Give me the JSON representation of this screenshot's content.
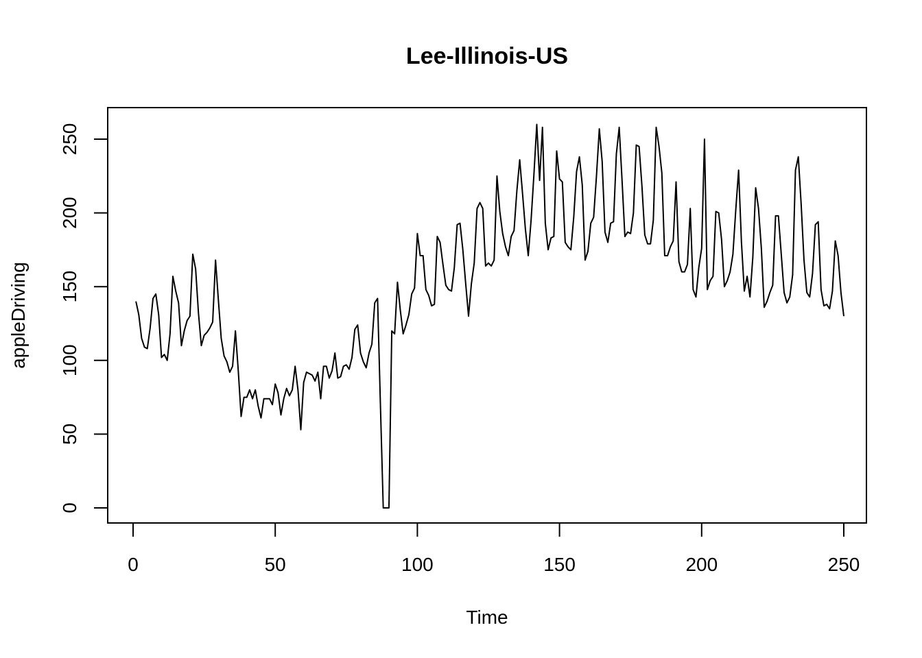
{
  "chart_data": {
    "type": "line",
    "title": "Lee-Illinois-US",
    "xlabel": "Time",
    "ylabel": "appleDriving",
    "xlim": [
      0,
      250
    ],
    "ylim": [
      0,
      250
    ],
    "x_ticks": [
      0,
      50,
      100,
      150,
      200,
      250
    ],
    "y_ticks": [
      0,
      50,
      100,
      150,
      200,
      250
    ],
    "grid": false,
    "legend": "none",
    "line_color": "#000000",
    "series": [
      {
        "x_start": 1,
        "values": [
          140,
          131,
          115,
          109,
          108,
          122,
          142,
          145,
          131,
          102,
          104,
          100,
          118,
          157,
          147,
          139,
          110,
          120,
          127,
          130,
          172,
          162,
          132,
          110,
          117,
          119,
          122,
          126,
          168,
          141,
          115,
          103,
          99,
          92,
          96,
          120,
          93,
          62,
          75,
          75,
          80,
          74,
          80,
          69,
          61,
          74,
          74,
          74,
          70,
          84,
          78,
          63,
          74,
          81,
          76,
          80,
          96,
          80,
          53,
          85,
          92,
          91,
          90,
          86,
          92,
          74,
          96,
          96,
          88,
          93,
          105,
          88,
          89,
          96,
          97,
          94,
          102,
          121,
          124,
          105,
          99,
          95,
          105,
          111,
          139,
          142,
          70,
          0,
          0,
          0,
          120,
          118,
          153,
          134,
          118,
          124,
          131,
          145,
          149,
          186,
          171,
          171,
          148,
          144,
          137,
          138,
          184,
          180,
          165,
          151,
          148,
          147,
          163,
          192,
          193,
          175,
          152,
          130,
          152,
          166,
          203,
          207,
          203,
          164,
          166,
          164,
          168,
          225,
          201,
          186,
          177,
          171,
          184,
          188,
          215,
          236,
          213,
          189,
          171,
          195,
          226,
          260,
          222,
          258,
          193,
          175,
          183,
          184,
          242,
          223,
          221,
          180,
          177,
          175,
          197,
          228,
          238,
          219,
          168,
          174,
          193,
          197,
          225,
          257,
          235,
          187,
          180,
          193,
          194,
          240,
          258,
          222,
          184,
          187,
          186,
          200,
          246,
          245,
          218,
          185,
          179,
          179,
          195,
          258,
          245,
          227,
          171,
          171,
          177,
          181,
          221,
          167,
          160,
          160,
          165,
          203,
          148,
          143,
          163,
          176,
          250,
          148,
          154,
          157,
          201,
          200,
          182,
          150,
          154,
          160,
          172,
          202,
          229,
          180,
          147,
          157,
          143,
          170,
          217,
          203,
          176,
          136,
          140,
          146,
          151,
          198,
          198,
          172,
          146,
          139,
          143,
          158,
          229,
          238,
          206,
          168,
          146,
          143,
          159,
          192,
          194,
          148,
          137,
          138,
          135,
          147,
          181,
          171,
          146,
          130
        ]
      }
    ]
  }
}
